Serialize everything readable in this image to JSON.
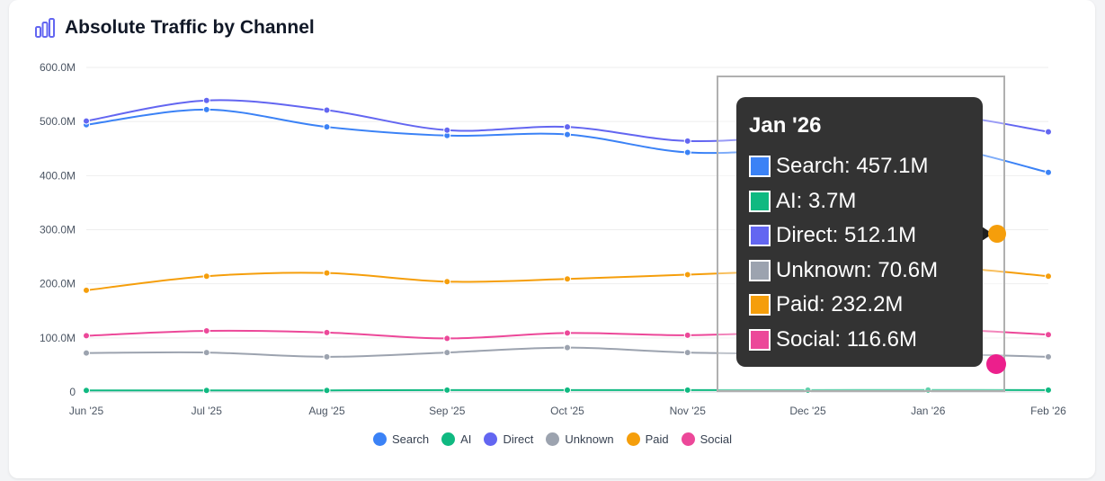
{
  "header": {
    "title": "Absolute Traffic by Channel",
    "icon": "bar-chart-icon"
  },
  "colors": {
    "Search": "#3b82f6",
    "AI": "#10b981",
    "Direct": "#6366f1",
    "Unknown": "#9ca3af",
    "Paid": "#f59e0b",
    "Social": "#ec4899"
  },
  "chart_data": {
    "type": "line",
    "title": "Absolute Traffic by Channel",
    "categories": [
      "Jun '25",
      "Jul '25",
      "Aug '25",
      "Sep '25",
      "Oct '25",
      "Nov '25",
      "Dec '25",
      "Jan '26",
      "Feb '26"
    ],
    "ylim": [
      0,
      600
    ],
    "y_ticks": [
      "0",
      "100.0M",
      "200.0M",
      "300.0M",
      "400.0M",
      "500.0M",
      "600.0M"
    ],
    "grid": true,
    "legend_position": "bottom-center",
    "series": [
      {
        "name": "Search",
        "values": [
          494,
          522,
          490,
          474,
          476,
          443,
          450,
          457.1,
          406
        ]
      },
      {
        "name": "AI",
        "values": [
          3,
          3,
          3,
          3.5,
          3.5,
          3.5,
          3.6,
          3.7,
          3.5
        ]
      },
      {
        "name": "Direct",
        "values": [
          501,
          539,
          521,
          484,
          490,
          464,
          478,
          512.1,
          481
        ]
      },
      {
        "name": "Unknown",
        "values": [
          72,
          73,
          65,
          73,
          82,
          73,
          71,
          70.6,
          65
        ]
      },
      {
        "name": "Paid",
        "values": [
          188,
          214,
          220,
          204,
          209,
          217,
          225,
          232.2,
          214
        ]
      },
      {
        "name": "Social",
        "values": [
          104,
          113,
          110,
          99,
          109,
          105,
          112,
          116.6,
          106
        ]
      }
    ]
  },
  "legend": {
    "items": [
      "Search",
      "AI",
      "Direct",
      "Unknown",
      "Paid",
      "Social"
    ]
  },
  "tooltip": {
    "title": "Jan '26",
    "rows": [
      {
        "series": "Search",
        "text": "Search: 457.1M"
      },
      {
        "series": "AI",
        "text": "AI: 3.7M"
      },
      {
        "series": "Direct",
        "text": "Direct: 512.1M"
      },
      {
        "series": "Unknown",
        "text": "Unknown: 70.6M"
      },
      {
        "series": "Paid",
        "text": "Paid: 232.2M"
      },
      {
        "series": "Social",
        "text": "Social: 116.6M"
      }
    ]
  }
}
